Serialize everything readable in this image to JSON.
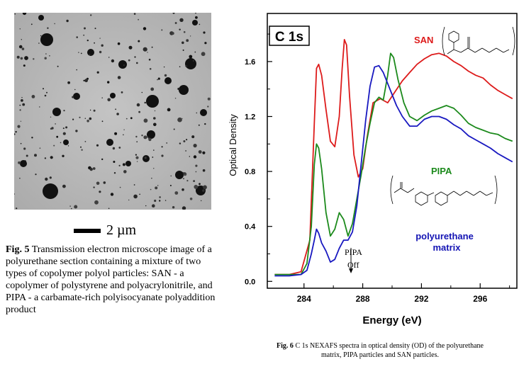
{
  "fig5": {
    "scale_bar_label": "2 µm",
    "caption_label": "Fig. 5",
    "caption_text": " Transmission electron microscope image of a polyurethane section containing a mixture of two types of copolymer polyol particles: SAN - a copolymer of polystyrene and polyacrylonitrile, and PIPA - a carbamate-rich polyisocyanate polyaddition product"
  },
  "fig6": {
    "caption_label": "Fig. 6",
    "caption_text": " C 1s NEXAFS spectra in optical density (OD) of the polyurethane matrix, PIPA particles and SAN particles."
  },
  "colors": {
    "san": "#dd1b1b",
    "pipa": "#1c8a1c",
    "matrix": "#1818c0",
    "label_blue": "#1414b4"
  },
  "chart_data": {
    "type": "line",
    "title": "C 1s",
    "xlabel": "Energy (eV)",
    "ylabel": "Optical Density",
    "xlim": [
      281.5,
      298.5
    ],
    "ylim": [
      -0.05,
      1.95
    ],
    "xticks": [
      284,
      288,
      292,
      296
    ],
    "xtick_labels": [
      "284",
      "288",
      "292",
      "296"
    ],
    "yticks": [
      0.0,
      0.4,
      0.8,
      1.2,
      1.6
    ],
    "ytick_labels": [
      "0.0",
      "0.4",
      "0.8",
      "1.2",
      "1.6"
    ],
    "annotation": {
      "text_line1": "PIPA",
      "text_line2": "Off",
      "x": 287.2
    },
    "series": [
      {
        "name": "SAN",
        "label": "SAN",
        "color": "#dd1b1b",
        "x": [
          282,
          283,
          283.8,
          284.4,
          284.7,
          284.85,
          285,
          285.2,
          285.5,
          285.8,
          286.1,
          286.4,
          286.6,
          286.75,
          286.9,
          287.1,
          287.4,
          287.7,
          288,
          288.3,
          288.7,
          289.2,
          289.7,
          290.2,
          290.7,
          291.2,
          291.7,
          292.2,
          292.7,
          293.2,
          293.7,
          294.2,
          294.7,
          295.2,
          295.7,
          296.2,
          296.7,
          297.2,
          297.7,
          298.2
        ],
        "y": [
          0.05,
          0.05,
          0.07,
          0.3,
          1.15,
          1.55,
          1.58,
          1.5,
          1.25,
          1.02,
          0.98,
          1.2,
          1.55,
          1.76,
          1.72,
          1.35,
          0.92,
          0.76,
          0.82,
          1.05,
          1.3,
          1.33,
          1.3,
          1.38,
          1.46,
          1.52,
          1.58,
          1.62,
          1.65,
          1.66,
          1.64,
          1.6,
          1.57,
          1.53,
          1.5,
          1.48,
          1.43,
          1.39,
          1.36,
          1.33
        ]
      },
      {
        "name": "PIPA",
        "label": "PIPA",
        "color": "#1c8a1c",
        "x": [
          282,
          283,
          283.8,
          284.2,
          284.5,
          284.7,
          284.85,
          285,
          285.2,
          285.5,
          285.8,
          286.1,
          286.4,
          286.7,
          287,
          287.3,
          287.6,
          287.9,
          288.2,
          288.5,
          288.8,
          289.1,
          289.4,
          289.7,
          289.9,
          290.1,
          290.4,
          290.8,
          291.2,
          291.7,
          292.2,
          292.7,
          293.2,
          293.7,
          294.2,
          294.7,
          295.2,
          295.7,
          296.2,
          296.7,
          297.2,
          297.7,
          298.2
        ],
        "y": [
          0.05,
          0.05,
          0.05,
          0.13,
          0.4,
          0.85,
          1.0,
          0.97,
          0.82,
          0.5,
          0.33,
          0.38,
          0.5,
          0.45,
          0.33,
          0.42,
          0.6,
          0.78,
          0.98,
          1.15,
          1.3,
          1.34,
          1.32,
          1.5,
          1.66,
          1.63,
          1.47,
          1.3,
          1.2,
          1.17,
          1.21,
          1.24,
          1.26,
          1.28,
          1.26,
          1.21,
          1.15,
          1.12,
          1.1,
          1.08,
          1.07,
          1.04,
          1.02
        ]
      },
      {
        "name": "polyurethane matrix",
        "label_line1": "polyurethane",
        "label_line2": "matrix",
        "color": "#1818c0",
        "x": [
          282,
          283,
          283.8,
          284.2,
          284.5,
          284.7,
          284.85,
          285,
          285.2,
          285.5,
          285.8,
          286.1,
          286.4,
          286.7,
          287,
          287.3,
          287.6,
          287.9,
          288.2,
          288.5,
          288.8,
          289.1,
          289.4,
          289.7,
          290,
          290.3,
          290.7,
          291.2,
          291.7,
          292.2,
          292.7,
          293.2,
          293.7,
          294.2,
          294.7,
          295.2,
          295.7,
          296.2,
          296.7,
          297.2,
          297.7,
          298.2
        ],
        "y": [
          0.04,
          0.04,
          0.05,
          0.08,
          0.2,
          0.3,
          0.38,
          0.35,
          0.28,
          0.22,
          0.14,
          0.16,
          0.24,
          0.3,
          0.3,
          0.36,
          0.55,
          0.86,
          1.17,
          1.42,
          1.56,
          1.57,
          1.52,
          1.44,
          1.36,
          1.28,
          1.2,
          1.13,
          1.13,
          1.18,
          1.2,
          1.2,
          1.18,
          1.14,
          1.11,
          1.06,
          1.03,
          1.0,
          0.97,
          0.93,
          0.9,
          0.87
        ]
      }
    ]
  }
}
